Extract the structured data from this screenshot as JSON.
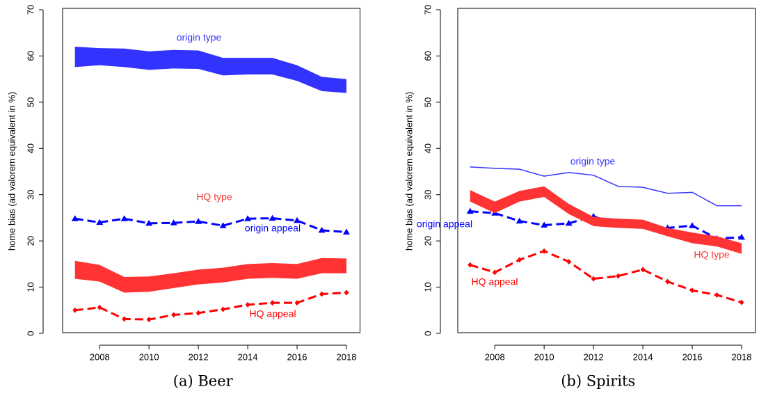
{
  "chart_data": [
    {
      "type": "line",
      "title": "(a) Beer",
      "y_label": "home bias (ad valorem equivalent in %)",
      "x": [
        2007,
        2008,
        2009,
        2010,
        2011,
        2012,
        2013,
        2014,
        2015,
        2016,
        2017,
        2018
      ],
      "xlim": [
        2006.5,
        2018.55
      ],
      "xticks": [
        2008,
        2010,
        2012,
        2014,
        2016,
        2018
      ],
      "ylim": [
        0,
        70
      ],
      "yticks": [
        0,
        10,
        20,
        30,
        40,
        50,
        60,
        70
      ],
      "series": [
        {
          "name": "origin type",
          "color": "#3333ff",
          "style": "band",
          "upper": [
            62,
            61.7,
            61.6,
            61,
            61.3,
            61.2,
            59.6,
            59.6,
            59.6,
            58,
            55.5,
            55
          ],
          "lower": [
            57.6,
            58,
            57.6,
            57,
            57.3,
            57.2,
            55.8,
            56,
            56,
            54.6,
            52.4,
            52
          ]
        },
        {
          "name": "origin appeal",
          "color": "#0000ff",
          "style": "dashed",
          "marker": "triangle",
          "values": [
            24.8,
            24,
            24.8,
            23.8,
            23.9,
            24.2,
            23.3,
            24.8,
            24.9,
            24.4,
            22.3,
            21.9
          ]
        },
        {
          "name": "HQ type",
          "color": "#ff3333",
          "style": "band",
          "upper": [
            15.7,
            14.8,
            12.2,
            12.3,
            13,
            13.8,
            14.2,
            15,
            15.2,
            15,
            16.3,
            16.2
          ],
          "lower": [
            11.8,
            11.2,
            8.8,
            9,
            9.8,
            10.6,
            11,
            11.8,
            12,
            11.8,
            13,
            13
          ]
        },
        {
          "name": "HQ appeal",
          "color": "#ff0000",
          "style": "dashed",
          "marker": "diamond",
          "values": [
            5,
            5.6,
            3.1,
            3,
            4,
            4.4,
            5.2,
            6.2,
            6.6,
            6.6,
            8.5,
            8.8
          ]
        }
      ]
    },
    {
      "type": "line",
      "title": "(b) Spirits",
      "y_label": "home bias (ad valorem equivalent in %)",
      "x": [
        2007,
        2008,
        2009,
        2010,
        2011,
        2012,
        2013,
        2014,
        2015,
        2016,
        2017,
        2018
      ],
      "xlim": [
        2006.5,
        2018.55
      ],
      "xticks": [
        2008,
        2010,
        2012,
        2014,
        2016,
        2018
      ],
      "ylim": [
        0,
        70
      ],
      "yticks": [
        0,
        10,
        20,
        30,
        40,
        50,
        60,
        70
      ],
      "series": [
        {
          "name": "origin type",
          "color": "#3333ff",
          "style": "line",
          "values": [
            36,
            35.7,
            35.5,
            34,
            34.8,
            34.2,
            31.8,
            31.6,
            30.3,
            30.5,
            27.6,
            27.6
          ]
        },
        {
          "name": "origin appeal",
          "color": "#0000ff",
          "style": "dashed",
          "marker": "triangle",
          "values": [
            26.4,
            26,
            24.3,
            23.4,
            23.8,
            25.3,
            23.5,
            23.2,
            22.8,
            23.3,
            20.5,
            20.8
          ]
        },
        {
          "name": "HQ type",
          "color": "#ff3333",
          "style": "band",
          "upper": [
            31,
            28.5,
            30.8,
            31.8,
            28,
            25.2,
            24.8,
            24.6,
            22.8,
            21.8,
            21,
            19.5
          ],
          "lower": [
            28.5,
            26,
            28.5,
            29.5,
            25.8,
            23.2,
            22.8,
            22.6,
            21,
            19.5,
            18.8,
            17.2
          ]
        },
        {
          "name": "HQ appeal",
          "color": "#ff0000",
          "style": "dashed",
          "marker": "diamond",
          "values": [
            14.8,
            13.2,
            15.9,
            17.8,
            15.5,
            11.8,
            12.4,
            13.8,
            11.2,
            9.3,
            8.3,
            6.7
          ]
        }
      ]
    }
  ]
}
